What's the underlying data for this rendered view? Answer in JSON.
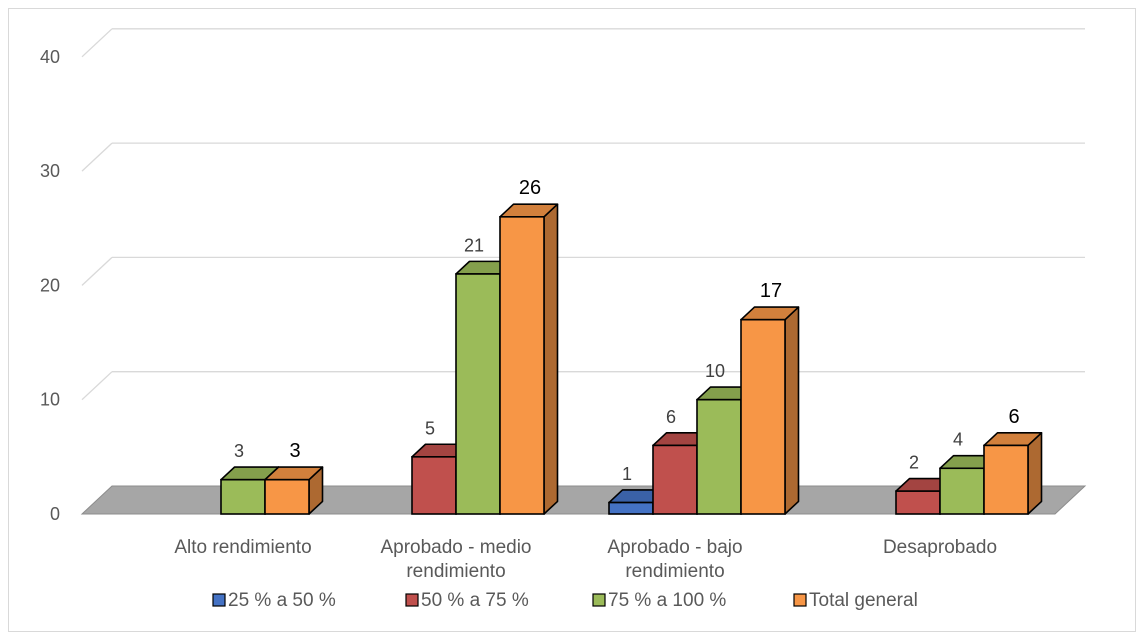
{
  "chart_data": {
    "type": "bar",
    "style": "3d-clustered-column",
    "categories": [
      [
        "Alto rendimiento"
      ],
      [
        "Aprobado - medio",
        "rendimiento"
      ],
      [
        "Aprobado - bajo",
        "rendimiento"
      ],
      [
        "Desaprobado"
      ]
    ],
    "series": [
      {
        "name": "25 % a 50 %",
        "color": "#4472c4",
        "values": [
          null,
          null,
          1,
          null
        ]
      },
      {
        "name": "50 % a 75 %",
        "color": "#c0504d",
        "values": [
          null,
          5,
          6,
          2
        ]
      },
      {
        "name": "75 % a 100 %",
        "color": "#9bbb59",
        "values": [
          3,
          21,
          10,
          4
        ]
      },
      {
        "name": "Total general",
        "color": "#f79646",
        "values": [
          3,
          26,
          17,
          6
        ]
      }
    ],
    "y_ticks": [
      0,
      10,
      20,
      30,
      40
    ],
    "ylim": [
      0,
      40
    ],
    "grid": true,
    "legend_position": "bottom",
    "title": "",
    "xlabel": "",
    "ylabel": ""
  }
}
